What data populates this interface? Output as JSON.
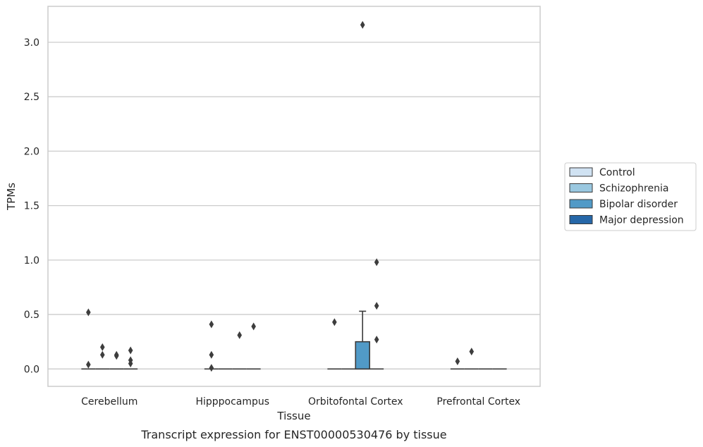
{
  "chart_data": {
    "type": "box",
    "title": "",
    "caption": "Transcript expression for ENST00000530476 by tissue",
    "xlabel": "Tissue",
    "ylabel": "TPMs",
    "ylim": [
      -0.16,
      3.33
    ],
    "yticks": [
      "0.0",
      "0.5",
      "1.0",
      "1.5",
      "2.0",
      "2.5",
      "3.0"
    ],
    "grid": "horizontal",
    "legend_position": "right",
    "categories": [
      "Cerebellum",
      "Hipppocampus",
      "Orbitofontal Cortex",
      "Prefrontal Cortex"
    ],
    "series": [
      {
        "name": "Control",
        "color": "#d0e2f2",
        "boxes": [
          {
            "category": "Cerebellum",
            "q1": 0,
            "median": 0,
            "q3": 0,
            "whisker_low": 0,
            "whisker_high": 0,
            "outliers": [
              0.04,
              0.52
            ]
          },
          {
            "category": "Hipppocampus",
            "q1": 0,
            "median": 0,
            "q3": 0,
            "whisker_low": 0,
            "whisker_high": 0,
            "outliers": [
              0.01,
              0.13,
              0.41
            ]
          },
          {
            "category": "Orbitofontal Cortex",
            "q1": 0,
            "median": 0,
            "q3": 0,
            "whisker_low": 0,
            "whisker_high": 0,
            "outliers": [
              0.43
            ]
          },
          {
            "category": "Prefrontal Cortex",
            "q1": 0,
            "median": 0,
            "q3": 0,
            "whisker_low": 0,
            "whisker_high": 0,
            "outliers": [
              0.07
            ]
          }
        ]
      },
      {
        "name": "Schizophrenia",
        "color": "#9ac8e0",
        "boxes": [
          {
            "category": "Cerebellum",
            "q1": 0,
            "median": 0,
            "q3": 0,
            "whisker_low": 0,
            "whisker_high": 0,
            "outliers": [
              0.13,
              0.2
            ]
          },
          {
            "category": "Hipppocampus",
            "q1": 0,
            "median": 0,
            "q3": 0,
            "whisker_low": 0,
            "whisker_high": 0,
            "outliers": []
          },
          {
            "category": "Orbitofontal Cortex",
            "q1": 0,
            "median": 0,
            "q3": 0,
            "whisker_low": 0,
            "whisker_high": 0,
            "outliers": []
          },
          {
            "category": "Prefrontal Cortex",
            "q1": 0,
            "median": 0,
            "q3": 0,
            "whisker_low": 0,
            "whisker_high": 0,
            "outliers": [
              0.16
            ]
          }
        ]
      },
      {
        "name": "Bipolar disorder",
        "color": "#519ac7",
        "boxes": [
          {
            "category": "Cerebellum",
            "q1": 0,
            "median": 0,
            "q3": 0,
            "whisker_low": 0,
            "whisker_high": 0,
            "outliers": [
              0.12,
              0.13
            ]
          },
          {
            "category": "Hipppocampus",
            "q1": 0,
            "median": 0,
            "q3": 0,
            "whisker_low": 0,
            "whisker_high": 0,
            "outliers": [
              0.31
            ]
          },
          {
            "category": "Orbitofontal Cortex",
            "q1": 0,
            "median": 0,
            "q3": 0.25,
            "whisker_low": 0,
            "whisker_high": 0.53,
            "outliers": [
              3.16
            ]
          },
          {
            "category": "Prefrontal Cortex",
            "q1": 0,
            "median": 0,
            "q3": 0,
            "whisker_low": 0,
            "whisker_high": 0,
            "outliers": []
          }
        ]
      },
      {
        "name": "Major depression",
        "color": "#2667a8",
        "boxes": [
          {
            "category": "Cerebellum",
            "q1": 0,
            "median": 0,
            "q3": 0,
            "whisker_low": 0,
            "whisker_high": 0,
            "outliers": [
              0.05,
              0.08,
              0.17
            ]
          },
          {
            "category": "Hipppocampus",
            "q1": 0,
            "median": 0,
            "q3": 0,
            "whisker_low": 0,
            "whisker_high": 0,
            "outliers": [
              0.39
            ]
          },
          {
            "category": "Orbitofontal Cortex",
            "q1": 0,
            "median": 0,
            "q3": 0,
            "whisker_low": 0,
            "whisker_high": 0,
            "outliers": [
              0.27,
              0.58,
              0.98
            ]
          },
          {
            "category": "Prefrontal Cortex",
            "q1": 0,
            "median": 0,
            "q3": 0,
            "whisker_low": 0,
            "whisker_high": 0,
            "outliers": []
          }
        ]
      }
    ]
  }
}
